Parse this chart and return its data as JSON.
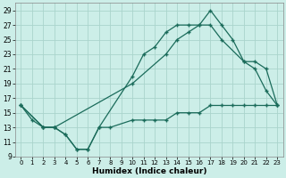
{
  "xlabel": "Humidex (Indice chaleur)",
  "bg_color": "#cceee8",
  "grid_color": "#aad4cc",
  "line_color": "#1a6b5a",
  "xlim": [
    -0.5,
    23.5
  ],
  "ylim": [
    9,
    30
  ],
  "xticks": [
    0,
    1,
    2,
    3,
    4,
    5,
    6,
    7,
    8,
    9,
    10,
    11,
    12,
    13,
    14,
    15,
    16,
    17,
    18,
    19,
    20,
    21,
    22,
    23
  ],
  "yticks": [
    9,
    11,
    13,
    15,
    17,
    19,
    21,
    23,
    25,
    27,
    29
  ],
  "line1_x": [
    0,
    1,
    2,
    3,
    4,
    5,
    6,
    7,
    10,
    11,
    12,
    13,
    14,
    15,
    16,
    17,
    18,
    19,
    20,
    21,
    22,
    23
  ],
  "line1_y": [
    16,
    14,
    13,
    13,
    12,
    10,
    10,
    13,
    20,
    23,
    24,
    26,
    27,
    27,
    27,
    29,
    27,
    25,
    22,
    21,
    18,
    16
  ],
  "line2_x": [
    0,
    2,
    3,
    10,
    13,
    14,
    15,
    16,
    17,
    18,
    20,
    21,
    22,
    23
  ],
  "line2_y": [
    16,
    13,
    13,
    19,
    23,
    25,
    26,
    27,
    27,
    25,
    22,
    22,
    21,
    16
  ],
  "line3_x": [
    0,
    2,
    3,
    4,
    5,
    6,
    7,
    8,
    10,
    11,
    12,
    13,
    14,
    15,
    16,
    17,
    18,
    19,
    20,
    21,
    22,
    23
  ],
  "line3_y": [
    16,
    13,
    13,
    12,
    10,
    10,
    13,
    13,
    14,
    14,
    14,
    14,
    15,
    15,
    15,
    16,
    16,
    16,
    16,
    16,
    16,
    16
  ]
}
